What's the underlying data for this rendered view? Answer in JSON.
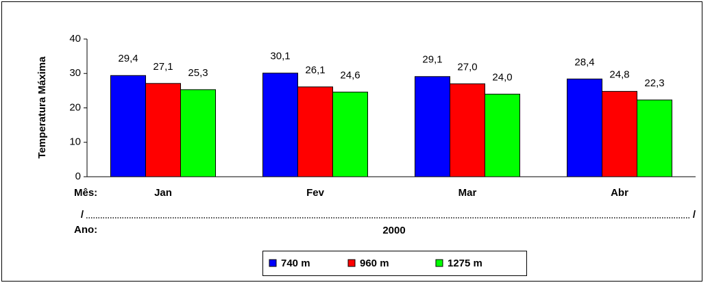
{
  "chart_data": {
    "type": "bar",
    "y_label": "Temperatura Máxima",
    "category_axis_label": "Mês:",
    "group_axis_label": "Ano:",
    "group": "2000",
    "separator": "/",
    "categories": [
      "Jan",
      "Fev",
      "Mar",
      "Abr"
    ],
    "series": [
      {
        "name": "740 m",
        "color": "#0000ff",
        "values": [
          29.4,
          30.1,
          29.1,
          28.4
        ],
        "value_labels": [
          "29,4",
          "30,1",
          "29,1",
          "28,4"
        ]
      },
      {
        "name": "960 m",
        "color": "#ff0000",
        "values": [
          27.1,
          26.1,
          27.0,
          24.8
        ],
        "value_labels": [
          "27,1",
          "26,1",
          "27,0",
          "24,8"
        ]
      },
      {
        "name": "1275 m",
        "color": "#00ff00",
        "values": [
          25.3,
          24.6,
          24.0,
          22.3
        ],
        "value_labels": [
          "25,3",
          "24,6",
          "24,0",
          "22,3"
        ]
      }
    ],
    "ylim": [
      0,
      40
    ],
    "yticks": [
      0,
      10,
      20,
      30,
      40
    ],
    "grid": false
  }
}
